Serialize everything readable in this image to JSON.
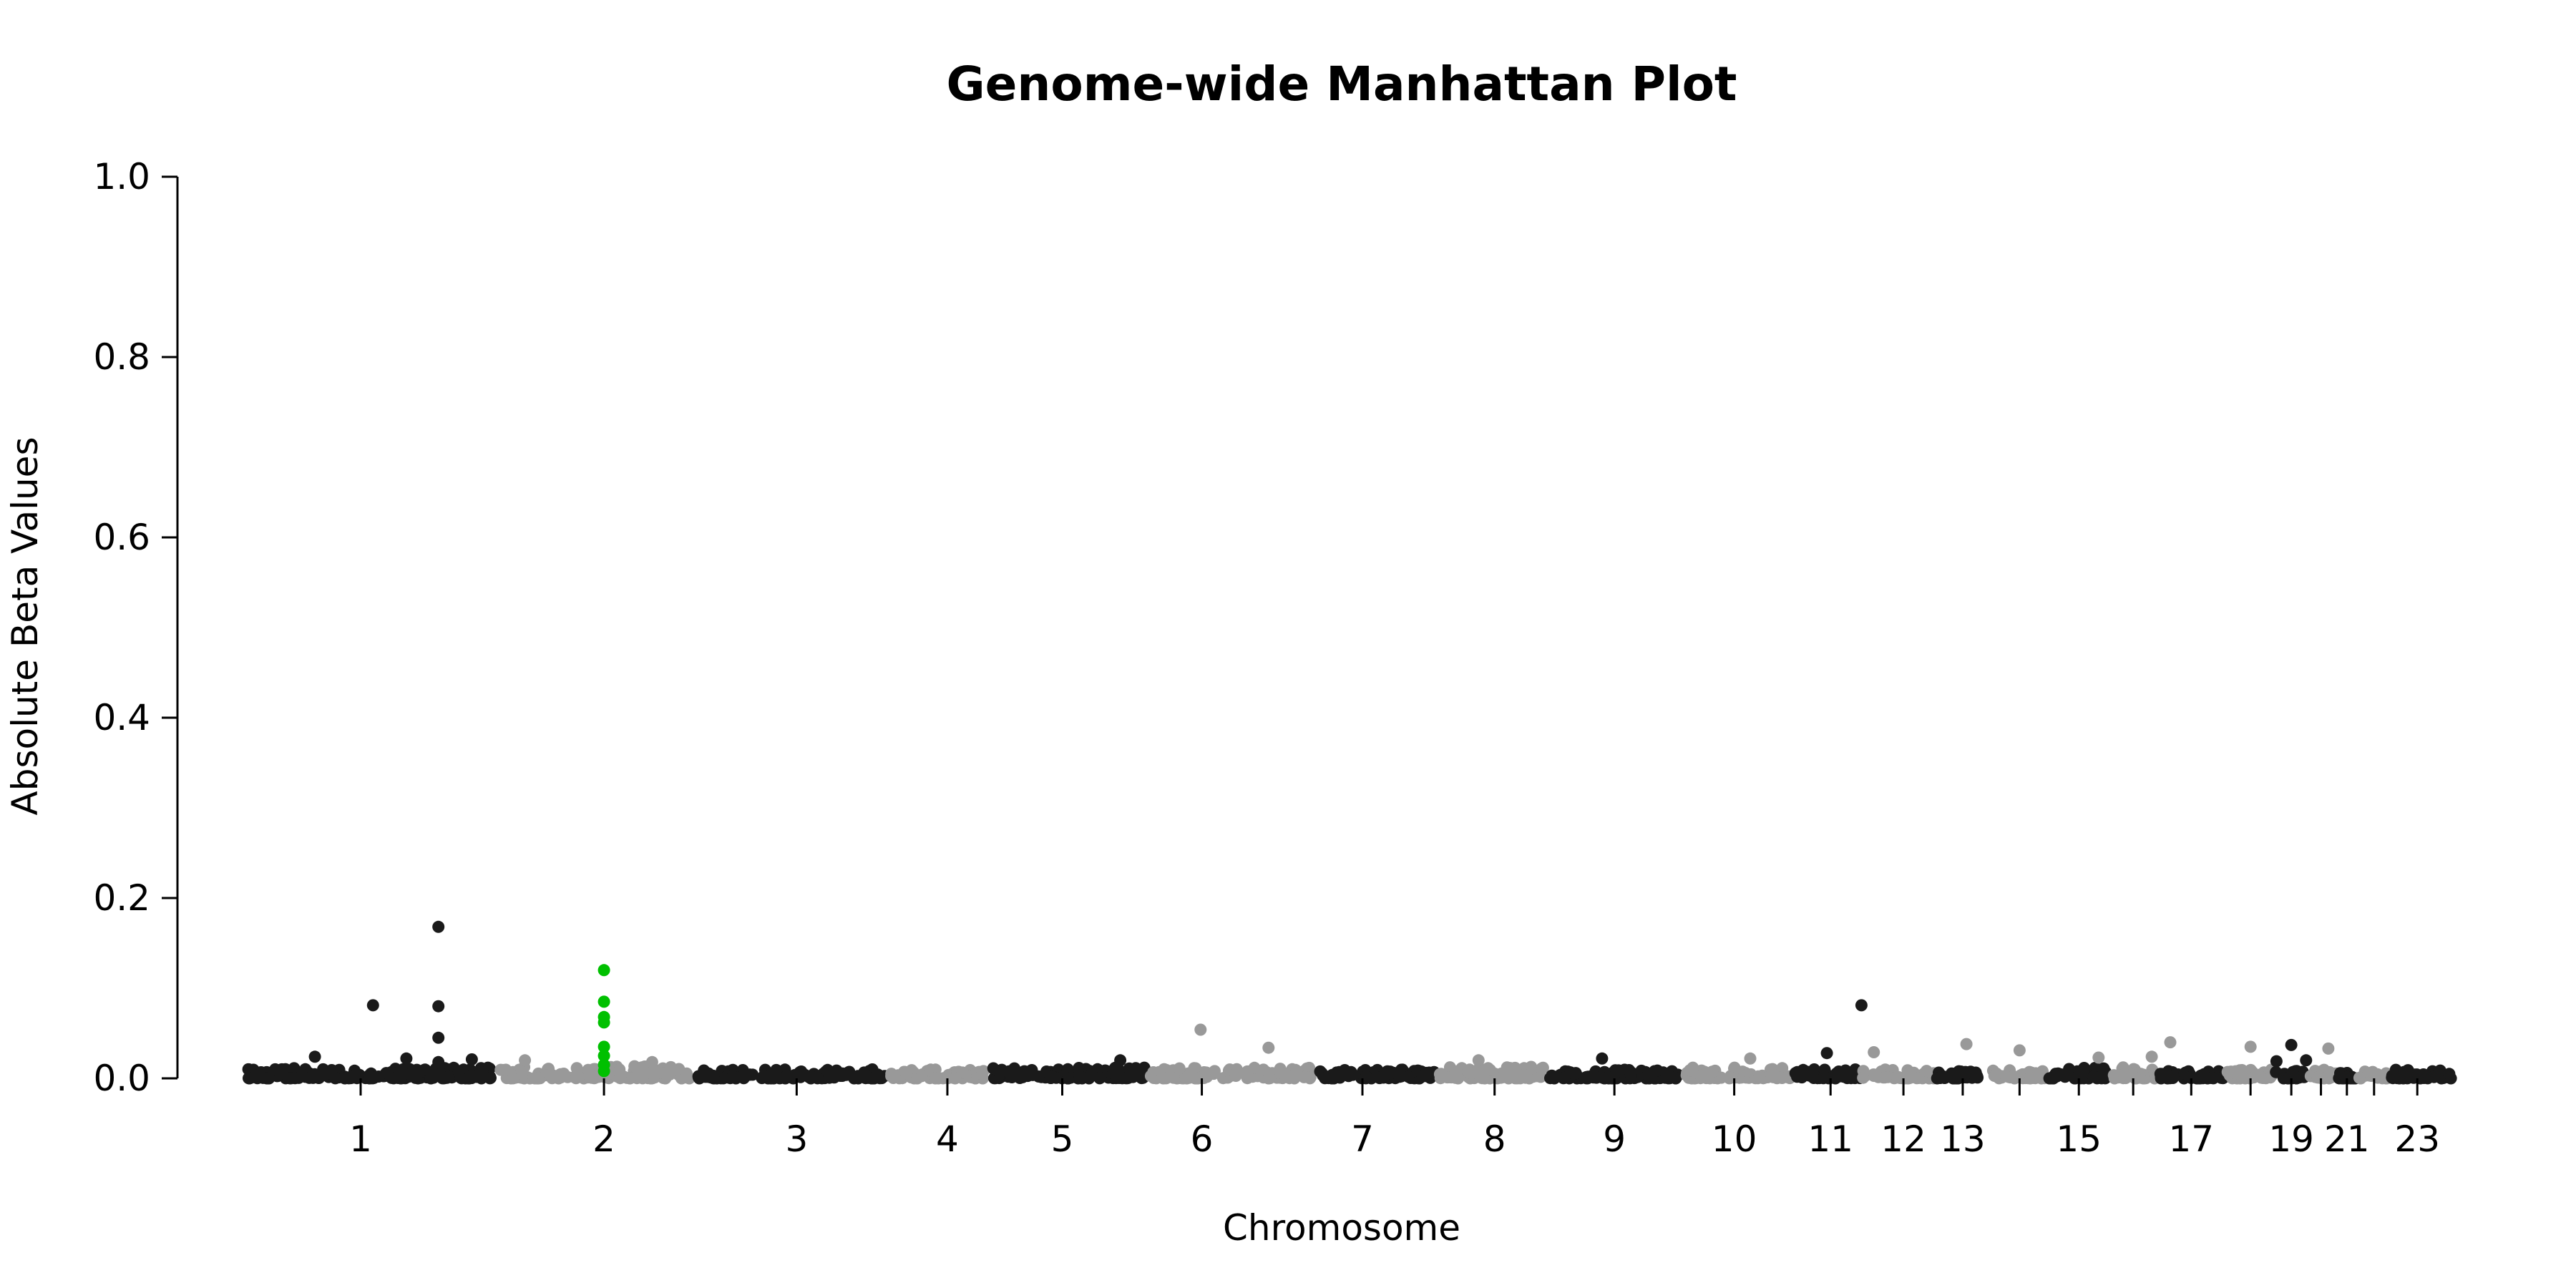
{
  "chart_data": {
    "type": "scatter",
    "title": "Genome-wide Manhattan Plot",
    "xlabel": "Chromosome",
    "ylabel": "Absolute Beta Values",
    "ylim": [
      0,
      1.0
    ],
    "y_ticks": [
      "0.0",
      "0.2",
      "0.4",
      "0.6",
      "0.8",
      "1.0"
    ],
    "x_tick_labels": [
      "1",
      "2",
      "3",
      "4",
      "5",
      "6",
      "7",
      "8",
      "9",
      "10",
      "11",
      "12",
      "13",
      "15",
      "17",
      "19",
      "21",
      "23"
    ],
    "grid": false,
    "legend": "none",
    "colors": {
      "odd_chromosome": "#1a1a1a",
      "even_chromosome": "#999999",
      "highlight": "#00c000"
    },
    "chromosomes": [
      {
        "chr": "1",
        "start": 0.03,
        "center": 0.125,
        "end": 0.235,
        "baseline_max": 0.012,
        "color": "odd"
      },
      {
        "chr": "2",
        "start": 0.235,
        "center": 0.322,
        "end": 0.395,
        "baseline_max": 0.014,
        "color": "even"
      },
      {
        "chr": "3",
        "start": 0.395,
        "center": 0.478,
        "end": 0.553,
        "baseline_max": 0.01,
        "color": "odd"
      },
      {
        "chr": "4",
        "start": 0.553,
        "center": 0.6,
        "end": 0.634,
        "baseline_max": 0.01,
        "color": "even"
      },
      {
        "chr": "5",
        "start": 0.634,
        "center": 0.693,
        "end": 0.762,
        "baseline_max": 0.012,
        "color": "odd"
      },
      {
        "chr": "6",
        "start": 0.762,
        "center": 0.806,
        "end": 0.899,
        "baseline_max": 0.012,
        "color": "even"
      },
      {
        "chr": "7",
        "start": 0.899,
        "center": 0.936,
        "end": 0.997,
        "baseline_max": 0.01,
        "color": "odd"
      },
      {
        "chr": "8",
        "start": 0.997,
        "center": 1.043,
        "end": 1.085,
        "baseline_max": 0.014,
        "color": "even"
      },
      {
        "chr": "9",
        "start": 1.085,
        "center": 1.14,
        "end": 1.195,
        "baseline_max": 0.01,
        "color": "odd"
      },
      {
        "chr": "10",
        "start": 1.195,
        "center": 1.237,
        "end": 1.285,
        "baseline_max": 0.012,
        "color": "even"
      },
      {
        "chr": "11",
        "start": 1.285,
        "center": 1.315,
        "end": 1.34,
        "baseline_max": 0.01,
        "color": "odd"
      },
      {
        "chr": "12",
        "start": 1.34,
        "center": 1.374,
        "end": 1.4,
        "baseline_max": 0.01,
        "color": "even"
      },
      {
        "chr": "13",
        "start": 1.4,
        "center": 1.422,
        "end": 1.445,
        "baseline_max": 0.008,
        "color": "odd"
      },
      {
        "chr": "14",
        "start": 1.445,
        "center": 1.468,
        "end": 1.49,
        "baseline_max": 0.01,
        "color": "even"
      },
      {
        "chr": "15",
        "start": 1.49,
        "center": 1.516,
        "end": 1.54,
        "baseline_max": 0.012,
        "color": "odd"
      },
      {
        "chr": "16",
        "start": 1.54,
        "center": 1.56,
        "end": 1.58,
        "baseline_max": 0.014,
        "color": "even"
      },
      {
        "chr": "17",
        "start": 1.58,
        "center": 1.607,
        "end": 1.635,
        "baseline_max": 0.008,
        "color": "odd"
      },
      {
        "chr": "18",
        "start": 1.635,
        "center": 1.655,
        "end": 1.675,
        "baseline_max": 0.01,
        "color": "even"
      },
      {
        "chr": "19",
        "start": 1.675,
        "center": 1.688,
        "end": 1.7,
        "baseline_max": 0.01,
        "color": "odd"
      },
      {
        "chr": "20",
        "start": 1.7,
        "center": 1.712,
        "end": 1.725,
        "baseline_max": 0.01,
        "color": "even"
      },
      {
        "chr": "21",
        "start": 1.725,
        "center": 1.733,
        "end": 1.742,
        "baseline_max": 0.008,
        "color": "odd"
      },
      {
        "chr": "22",
        "start": 1.742,
        "center": 1.755,
        "end": 1.768,
        "baseline_max": 0.008,
        "color": "even"
      },
      {
        "chr": "23",
        "start": 1.768,
        "center": 1.79,
        "end": 1.82,
        "baseline_max": 0.01,
        "color": "odd"
      }
    ],
    "ticks_without_labels": [
      "14",
      "16",
      "18",
      "20",
      "22"
    ],
    "notable_points": [
      {
        "x": 0.135,
        "y": 0.081,
        "color": "odd"
      },
      {
        "x": 0.088,
        "y": 0.024,
        "color": "odd"
      },
      {
        "x": 0.162,
        "y": 0.022,
        "color": "odd"
      },
      {
        "x": 0.188,
        "y": 0.168,
        "color": "odd"
      },
      {
        "x": 0.188,
        "y": 0.08,
        "color": "odd"
      },
      {
        "x": 0.188,
        "y": 0.045,
        "color": "odd"
      },
      {
        "x": 0.188,
        "y": 0.018,
        "color": "odd"
      },
      {
        "x": 0.215,
        "y": 0.021,
        "color": "odd"
      },
      {
        "x": 0.258,
        "y": 0.02,
        "color": "even"
      },
      {
        "x": 0.361,
        "y": 0.018,
        "color": "even"
      },
      {
        "x": 0.322,
        "y": 0.12,
        "color": "highlight"
      },
      {
        "x": 0.322,
        "y": 0.085,
        "color": "highlight"
      },
      {
        "x": 0.322,
        "y": 0.068,
        "color": "highlight"
      },
      {
        "x": 0.322,
        "y": 0.062,
        "color": "highlight"
      },
      {
        "x": 0.322,
        "y": 0.035,
        "color": "highlight"
      },
      {
        "x": 0.322,
        "y": 0.025,
        "color": "highlight"
      },
      {
        "x": 0.322,
        "y": 0.015,
        "color": "highlight"
      },
      {
        "x": 0.322,
        "y": 0.008,
        "color": "highlight"
      },
      {
        "x": 0.805,
        "y": 0.054,
        "color": "even"
      },
      {
        "x": 0.86,
        "y": 0.034,
        "color": "even"
      },
      {
        "x": 0.74,
        "y": 0.02,
        "color": "odd"
      },
      {
        "x": 1.03,
        "y": 0.02,
        "color": "even"
      },
      {
        "x": 1.13,
        "y": 0.022,
        "color": "odd"
      },
      {
        "x": 1.25,
        "y": 0.022,
        "color": "even"
      },
      {
        "x": 1.312,
        "y": 0.028,
        "color": "odd"
      },
      {
        "x": 1.34,
        "y": 0.081,
        "color": "odd"
      },
      {
        "x": 1.35,
        "y": 0.029,
        "color": "even"
      },
      {
        "x": 1.425,
        "y": 0.038,
        "color": "even"
      },
      {
        "x": 1.468,
        "y": 0.031,
        "color": "even"
      },
      {
        "x": 1.532,
        "y": 0.023,
        "color": "even"
      },
      {
        "x": 1.59,
        "y": 0.04,
        "color": "even"
      },
      {
        "x": 1.575,
        "y": 0.024,
        "color": "even"
      },
      {
        "x": 1.655,
        "y": 0.035,
        "color": "even"
      },
      {
        "x": 1.688,
        "y": 0.037,
        "color": "odd"
      },
      {
        "x": 1.676,
        "y": 0.019,
        "color": "odd"
      },
      {
        "x": 1.718,
        "y": 0.033,
        "color": "even"
      },
      {
        "x": 1.7,
        "y": 0.02,
        "color": "odd"
      }
    ]
  }
}
